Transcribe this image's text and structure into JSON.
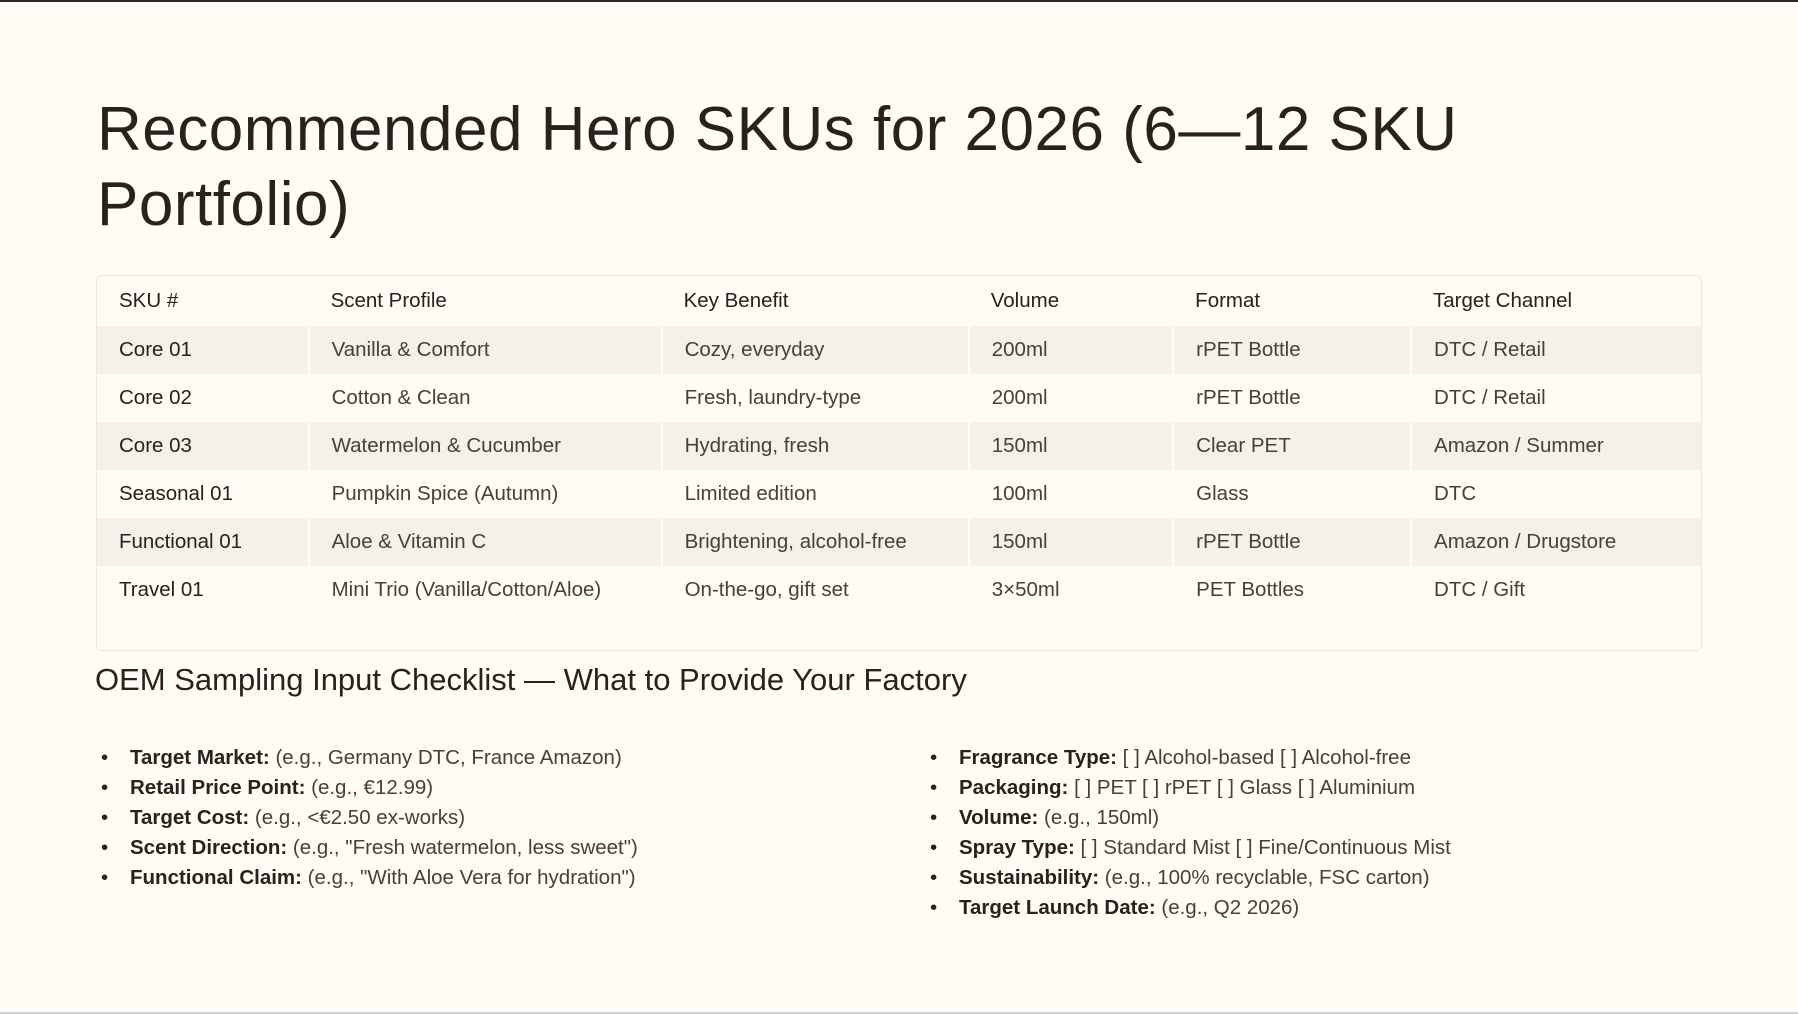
{
  "title": "Recommended Hero SKUs for 2026 (6—12 SKU Portfolio)",
  "table": {
    "headers": [
      "SKU #",
      "Scent Profile",
      "Key Benefit",
      "Volume",
      "Format",
      "Target Channel"
    ],
    "rows": [
      [
        "Core 01",
        "Vanilla & Comfort",
        "Cozy, everyday",
        "200ml",
        "rPET Bottle",
        "DTC / Retail"
      ],
      [
        "Core 02",
        "Cotton & Clean",
        "Fresh, laundry-type",
        "200ml",
        "rPET Bottle",
        "DTC / Retail"
      ],
      [
        "Core 03",
        "Watermelon & Cucumber",
        "Hydrating, fresh",
        "150ml",
        "Clear PET",
        "Amazon / Summer"
      ],
      [
        "Seasonal 01",
        "Pumpkin Spice (Autumn)",
        "Limited edition",
        "100ml",
        "Glass",
        "DTC"
      ],
      [
        "Functional 01",
        "Aloe & Vitamin C",
        "Brightening, alcohol-free",
        "150ml",
        "rPET Bottle",
        "Amazon / Drugstore"
      ],
      [
        "Travel 01",
        "Mini Trio (Vanilla/Cotton/Aloe)",
        "On-the-go, gift set",
        "3×50ml",
        "PET Bottles",
        "DTC / Gift"
      ]
    ]
  },
  "checklist": {
    "title": "OEM Sampling Input Checklist — What to Provide Your Factory",
    "left": [
      {
        "label": "Target Market:",
        "text": " (e.g., Germany DTC, France Amazon)"
      },
      {
        "label": "Retail Price Point:",
        "text": " (e.g., €12.99)"
      },
      {
        "label": "Target Cost:",
        "text": " (e.g., <€2.50 ex-works)"
      },
      {
        "label": "Scent Direction:",
        "text": " (e.g., \"Fresh watermelon, less sweet\")"
      },
      {
        "label": "Functional Claim:",
        "text": " (e.g., \"With Aloe Vera for hydration\")"
      }
    ],
    "right": [
      {
        "label": "Fragrance Type:",
        "text": " [ ] Alcohol-based [ ] Alcohol-free"
      },
      {
        "label": "Packaging:",
        "text": " [ ] PET [ ] rPET [ ] Glass [ ] Aluminium"
      },
      {
        "label": "Volume:",
        "text": " (e.g., 150ml)"
      },
      {
        "label": "Spray Type:",
        "text": " [ ] Standard Mist [ ] Fine/Continuous Mist"
      },
      {
        "label": "Sustainability:",
        "text": " (e.g., 100% recyclable, FSC carton)"
      },
      {
        "label": "Target Launch Date:",
        "text": " (e.g., Q2 2026)"
      }
    ]
  }
}
